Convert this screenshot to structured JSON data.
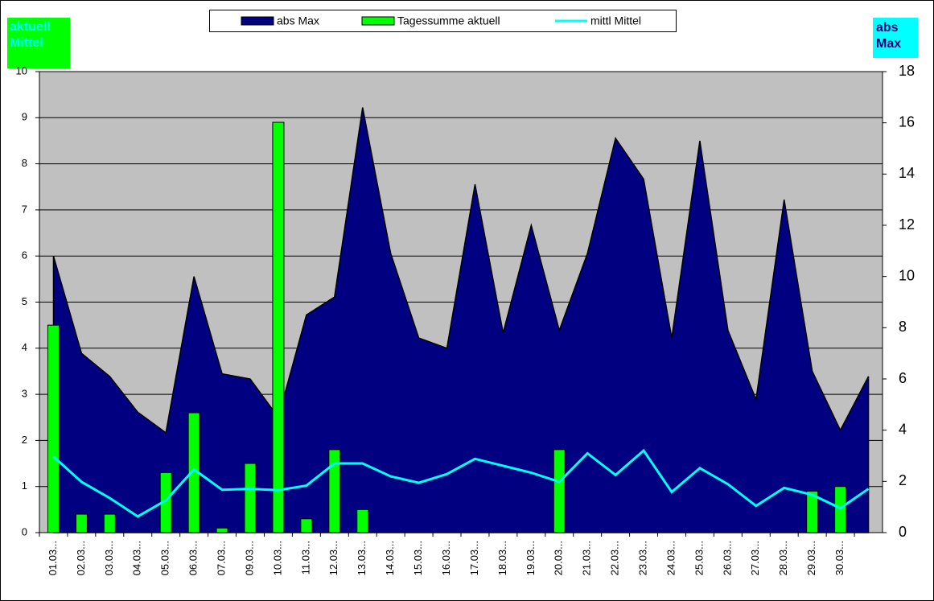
{
  "chart_data": {
    "type": "combo",
    "ylabel": "aktuell Mittel",
    "y2label": "abs Max",
    "categories": [
      "01.03...",
      "02.03...",
      "03.03...",
      "04.03...",
      "05.03...",
      "06.03...",
      "07.03...",
      "09.03...",
      "10.03...",
      "11.03...",
      "12.03...",
      "13.03...",
      "14.03...",
      "15.03...",
      "16.03...",
      "17.03...",
      "18.03...",
      "19.03...",
      "20.03...",
      "21.03...",
      "22.03...",
      "23.03...",
      "24.03...",
      "25.03...",
      "26.03...",
      "27.03...",
      "28.03...",
      "29.03...",
      "30.03...",
      null
    ],
    "series": [
      {
        "name": "abs Max",
        "type": "area",
        "color": "#000080",
        "axis": "y2",
        "values": [
          10.8,
          7.0,
          6.1,
          4.7,
          3.9,
          10.0,
          6.2,
          6.0,
          4.5,
          8.5,
          9.2,
          16.6,
          10.9,
          7.6,
          7.2,
          13.6,
          7.8,
          12.0,
          7.9,
          10.9,
          15.4,
          13.8,
          7.6,
          15.3,
          7.9,
          5.2,
          13.0,
          6.3,
          4.0,
          6.1
        ]
      },
      {
        "name": "Tagessumme aktuell",
        "type": "bar",
        "color": "#00ff00",
        "values": [
          4.5,
          0.4,
          0.4,
          0,
          1.3,
          2.6,
          0.1,
          1.5,
          8.9,
          0.3,
          1.8,
          0.5,
          0,
          0,
          0,
          0,
          0,
          0,
          1.8,
          0,
          0,
          0,
          0,
          0,
          0,
          0,
          0,
          0.9,
          1.0,
          0
        ]
      },
      {
        "name": "mittl Mittel",
        "type": "line",
        "color": "#00ffff",
        "values": [
          1.65,
          1.1,
          0.75,
          0.35,
          0.7,
          1.37,
          0.93,
          0.95,
          0.92,
          1.02,
          1.5,
          1.5,
          1.22,
          1.08,
          1.27,
          1.6,
          1.45,
          1.3,
          1.1,
          1.72,
          1.25,
          1.78,
          0.88,
          1.4,
          1.05,
          0.58,
          0.97,
          0.82,
          0.53,
          0.95
        ]
      }
    ],
    "ylim": [
      0,
      10
    ],
    "yticks": [
      0,
      1,
      2,
      3,
      4,
      5,
      6,
      7,
      8,
      9,
      10
    ],
    "y2lim": [
      0,
      18
    ],
    "y2ticks": [
      0,
      2,
      4,
      6,
      8,
      10,
      12,
      14,
      16,
      18
    ],
    "grid": true,
    "legend": "top"
  }
}
